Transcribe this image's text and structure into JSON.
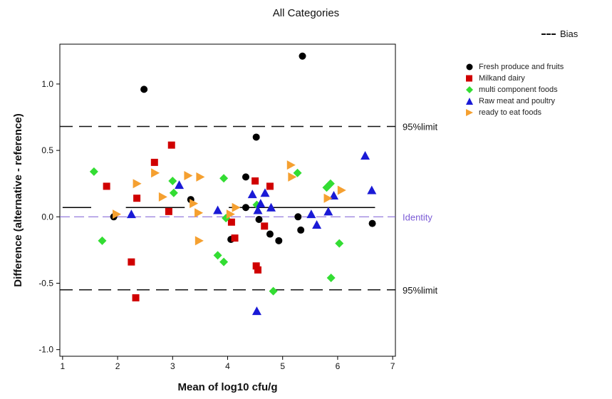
{
  "chart_data": {
    "type": "scatter",
    "title": "All Categories",
    "xlabel": "Mean of log10 cfu/g",
    "ylabel": "Difference (alternative - reference)",
    "xlim": [
      0.95,
      7.05
    ],
    "ylim": [
      -1.05,
      1.3
    ],
    "xticks": [
      1,
      2,
      3,
      4,
      5,
      6,
      7
    ],
    "yticks": [
      1.0,
      0.5,
      0.0,
      -0.5,
      -1.0
    ],
    "ytick_labels": [
      "1.0",
      "0.5",
      "0.0",
      "-0.5",
      "-1.0"
    ],
    "grid": false,
    "legend_position": "right",
    "bias_legend": "Bias",
    "reference_lines": [
      {
        "name": "upper_limit",
        "label": "95%limit",
        "y": 0.68,
        "style": "dashed",
        "color": "#111111"
      },
      {
        "name": "lower_limit",
        "label": "95%limit",
        "y": -0.55,
        "style": "dashed",
        "color": "#111111"
      },
      {
        "name": "identity",
        "label": "Identity",
        "y": 0.0,
        "style": "dashed",
        "color": "#7b5bd6"
      }
    ],
    "bias_segments": [
      {
        "x1": 1.0,
        "x2": 1.52,
        "y": 0.07
      },
      {
        "x1": 2.15,
        "x2": 3.22,
        "y": 0.07
      },
      {
        "x1": 4.02,
        "x2": 6.68,
        "y": 0.07
      }
    ],
    "series": [
      {
        "name": "Fresh produce and fruits",
        "marker": "circle",
        "color": "#000000",
        "points": [
          [
            2.48,
            0.96
          ],
          [
            5.36,
            1.21
          ],
          [
            4.52,
            0.6
          ],
          [
            3.33,
            0.13
          ],
          [
            4.33,
            0.3
          ],
          [
            1.93,
            0.0
          ],
          [
            4.33,
            0.07
          ],
          [
            4.06,
            -0.17
          ],
          [
            4.57,
            -0.02
          ],
          [
            4.77,
            -0.13
          ],
          [
            4.93,
            -0.18
          ],
          [
            5.33,
            -0.1
          ],
          [
            5.28,
            0.0
          ],
          [
            6.63,
            -0.05
          ]
        ]
      },
      {
        "name": "Milkand dairy",
        "marker": "square",
        "color": "#d00000",
        "points": [
          [
            1.8,
            0.23
          ],
          [
            2.35,
            0.14
          ],
          [
            2.93,
            0.04
          ],
          [
            2.98,
            0.54
          ],
          [
            2.67,
            0.41
          ],
          [
            2.25,
            -0.34
          ],
          [
            2.33,
            -0.61
          ],
          [
            4.07,
            -0.04
          ],
          [
            4.13,
            -0.16
          ],
          [
            4.5,
            0.27
          ],
          [
            4.77,
            0.23
          ],
          [
            4.67,
            -0.07
          ],
          [
            4.52,
            -0.37
          ],
          [
            4.55,
            -0.4
          ]
        ]
      },
      {
        "name": "multi component foods",
        "marker": "diamond",
        "color": "#33dd33",
        "points": [
          [
            1.57,
            0.34
          ],
          [
            1.72,
            -0.18
          ],
          [
            3.0,
            0.27
          ],
          [
            3.02,
            0.18
          ],
          [
            3.93,
            0.29
          ],
          [
            3.97,
            -0.01
          ],
          [
            3.82,
            -0.29
          ],
          [
            3.93,
            -0.34
          ],
          [
            4.53,
            0.09
          ],
          [
            4.83,
            -0.56
          ],
          [
            5.27,
            0.33
          ],
          [
            5.8,
            0.22
          ],
          [
            5.87,
            0.25
          ],
          [
            5.88,
            -0.46
          ],
          [
            6.03,
            -0.2
          ]
        ]
      },
      {
        "name": "Raw meat and poultry",
        "marker": "triangle",
        "color": "#1a1ad6",
        "points": [
          [
            3.12,
            0.24
          ],
          [
            2.25,
            0.02
          ],
          [
            3.82,
            0.05
          ],
          [
            4.45,
            0.17
          ],
          [
            4.55,
            0.05
          ],
          [
            4.6,
            0.1
          ],
          [
            4.68,
            0.18
          ],
          [
            4.79,
            0.07
          ],
          [
            4.53,
            -0.71
          ],
          [
            5.52,
            0.02
          ],
          [
            5.62,
            -0.06
          ],
          [
            5.83,
            0.04
          ],
          [
            5.93,
            0.16
          ],
          [
            6.5,
            0.46
          ],
          [
            6.62,
            0.2
          ]
        ]
      },
      {
        "name": "ready to eat foods",
        "marker": "triangle-right",
        "color": "#f5a030",
        "points": [
          [
            1.98,
            0.02
          ],
          [
            2.35,
            0.25
          ],
          [
            2.68,
            0.33
          ],
          [
            2.82,
            0.15
          ],
          [
            3.28,
            0.31
          ],
          [
            3.5,
            0.3
          ],
          [
            3.38,
            0.1
          ],
          [
            3.47,
            0.03
          ],
          [
            3.48,
            -0.18
          ],
          [
            4.05,
            0.02
          ],
          [
            4.15,
            0.07
          ],
          [
            5.15,
            0.39
          ],
          [
            5.17,
            0.3
          ],
          [
            5.82,
            0.14
          ],
          [
            6.07,
            0.2
          ]
        ]
      }
    ]
  }
}
